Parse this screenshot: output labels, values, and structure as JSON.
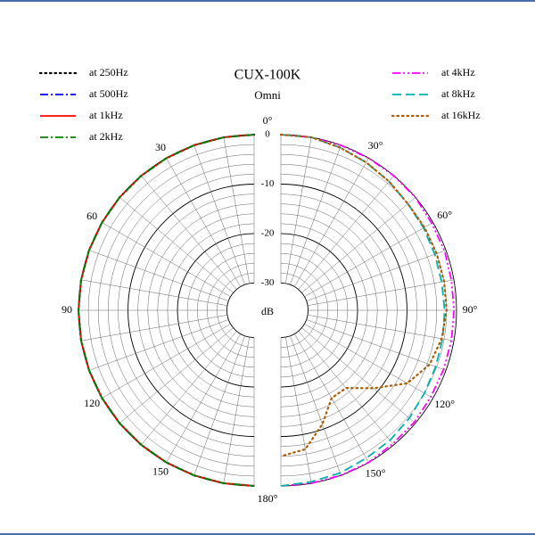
{
  "chart_data": {
    "type": "polar",
    "title": "CUX-100K",
    "subtitle": "Omni",
    "r_label": "dB",
    "theta": [
      0,
      10,
      20,
      30,
      40,
      50,
      60,
      70,
      80,
      90,
      100,
      110,
      120,
      130,
      140,
      150,
      160,
      170,
      180
    ],
    "rlim": [
      -35.5,
      0
    ],
    "rticks": [
      0,
      -10,
      -20,
      -30
    ],
    "rgrid_step": 2,
    "theta_ticks_right": [
      {
        "value": 0,
        "label": "0°"
      },
      {
        "value": 30,
        "label": "30°"
      },
      {
        "value": 60,
        "label": "60°"
      },
      {
        "value": 90,
        "label": "90°"
      },
      {
        "value": 120,
        "label": "120°"
      },
      {
        "value": 150,
        "label": "150°"
      },
      {
        "value": 180,
        "label": "180°"
      }
    ],
    "theta_ticks_left": [
      30,
      60,
      90,
      120,
      150
    ],
    "series": [
      {
        "name": "at 250Hz",
        "color": "#000000",
        "dash": "dotted",
        "side": "left",
        "values": [
          0,
          0,
          0,
          0,
          0,
          0,
          0,
          0,
          0,
          0,
          0,
          0,
          0,
          0,
          0,
          0,
          0,
          0,
          0
        ]
      },
      {
        "name": "at 500Hz",
        "color": "#0000ff",
        "dash": "dashdot",
        "side": "left",
        "values": [
          0,
          0,
          0,
          0,
          0,
          0,
          0,
          0,
          0,
          0,
          0,
          0,
          0,
          0,
          0,
          0,
          0,
          0,
          0
        ]
      },
      {
        "name": "at 1kHz",
        "color": "#ff0000",
        "dash": "solid",
        "side": "left",
        "values": [
          0,
          0,
          0,
          0,
          0,
          0,
          0,
          0,
          0,
          0,
          0,
          0,
          0,
          0,
          0,
          0,
          0,
          0,
          0
        ]
      },
      {
        "name": "at 2kHz",
        "color": "#008000",
        "dash": "dashdot",
        "side": "left",
        "values": [
          0,
          0,
          0,
          0,
          0,
          0,
          0,
          0,
          0,
          0,
          0,
          0,
          0,
          0,
          0,
          0,
          0,
          0,
          0
        ]
      },
      {
        "name": "at 4kHz",
        "color": "#ff00ff",
        "dash": "dashdotdot",
        "side": "right",
        "values": [
          0,
          0,
          0,
          0,
          0,
          0,
          -0.3,
          -0.3,
          -0.5,
          -0.5,
          -0.5,
          -0.5,
          -0.5,
          -0.3,
          -0.3,
          0,
          0,
          0,
          0
        ]
      },
      {
        "name": "at 8kHz",
        "color": "#00b0b0",
        "dash": "dashed",
        "side": "right",
        "values": [
          0,
          0,
          -0.5,
          -1,
          -1.5,
          -2,
          -2.2,
          -2.4,
          -2.5,
          -2.4,
          -2.3,
          -2.2,
          -2,
          -1.6,
          -1.2,
          -1,
          -0.5,
          -0.3,
          0
        ]
      },
      {
        "name": "at 16kHz",
        "color": "#b05a00",
        "dash": "dotted",
        "side": "right",
        "values": [
          0,
          0,
          -0.5,
          -1,
          -1.5,
          -2,
          -2,
          -2,
          -2,
          -2,
          -2.5,
          -3.5,
          -6,
          -11,
          -15,
          -15,
          -11,
          -7,
          -6
        ]
      }
    ]
  }
}
